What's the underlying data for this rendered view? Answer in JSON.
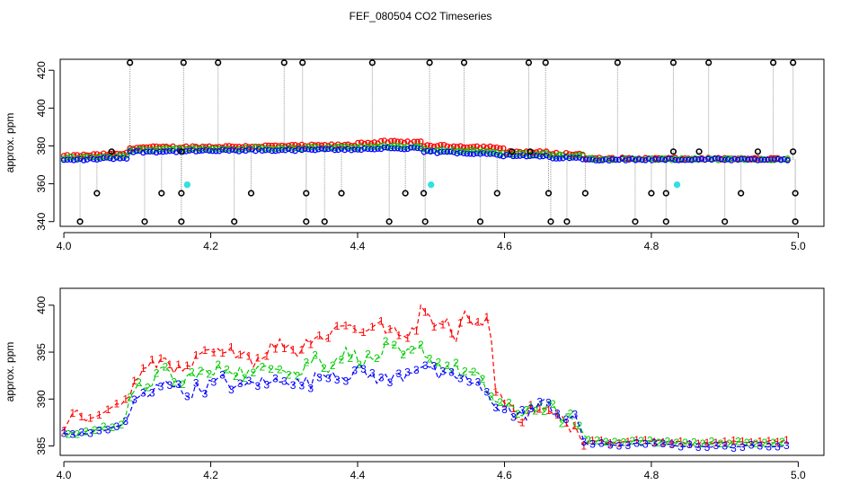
{
  "title": "FEF_080504  CO2 Timeseries",
  "colors": {
    "black": "#000000",
    "red": "#ff0000",
    "green": "#00cc00",
    "blue": "#0000ff",
    "cyan": "#33e0e0",
    "grey": "#9a9a9a"
  },
  "chart_data": [
    {
      "type": "scatter",
      "panel": "top",
      "xlabel": "",
      "ylabel": "approx. ppm",
      "xlim": [
        3.995,
        5.035
      ],
      "ylim": [
        337.5,
        425.8
      ],
      "xticks": [
        4.0,
        4.2,
        4.4,
        4.6,
        4.8,
        5.0
      ],
      "xtick_labels": [
        "4.0",
        "4.2",
        "4.4",
        "4.6",
        "4.8",
        "5.0"
      ],
      "yticks": [
        340,
        360,
        380,
        400,
        420
      ],
      "ytick_labels": [
        "340",
        "360",
        "380",
        "400",
        "420"
      ],
      "baseline_segments": [
        {
          "x0": 4.0,
          "x1": 4.09,
          "y0": 373.0,
          "y1": 374.5
        },
        {
          "x0": 4.09,
          "x1": 4.43,
          "y0": 377.5,
          "y1": 379.0
        },
        {
          "x0": 4.43,
          "x1": 4.49,
          "y0": 379.5,
          "y1": 379.0
        },
        {
          "x0": 4.49,
          "x1": 4.59,
          "y0": 377.5,
          "y1": 376.5
        },
        {
          "x0": 4.59,
          "x1": 4.66,
          "y0": 375.5,
          "y1": 375.0
        },
        {
          "x0": 4.66,
          "x1": 4.71,
          "y0": 374.5,
          "y1": 374.0
        },
        {
          "x0": 4.71,
          "x1": 4.99,
          "y0": 373.0,
          "y1": 372.8
        }
      ],
      "spike_high": {
        "y": 424,
        "x": [
          4.09,
          4.163,
          4.21,
          4.3,
          4.325,
          4.42,
          4.498,
          4.545,
          4.633,
          4.656,
          4.754,
          4.83,
          4.878,
          4.966,
          4.993
        ]
      },
      "spike_low": {
        "y": 340,
        "x": [
          4.022,
          4.11,
          4.16,
          4.232,
          4.33,
          4.355,
          4.443,
          4.492,
          4.567,
          4.663,
          4.685,
          4.778,
          4.82,
          4.9,
          4.996
        ]
      },
      "spike_mid": {
        "y": 355,
        "x": [
          4.045,
          4.133,
          4.16,
          4.255,
          4.33,
          4.378,
          4.465,
          4.49,
          4.59,
          4.66,
          4.71,
          4.8,
          4.82,
          4.922,
          4.996
        ]
      },
      "spike_upper": {
        "y": 377,
        "x": [
          4.065,
          4.16,
          4.61,
          4.635,
          4.83,
          4.865,
          4.945,
          4.993
        ]
      },
      "cyan_points": {
        "x": [
          4.168,
          4.5,
          4.835
        ],
        "y": [
          359.5,
          359.5,
          359.5
        ]
      }
    },
    {
      "type": "line",
      "panel": "bottom",
      "xlabel": "",
      "ylabel": "approx. ppm",
      "xlim": [
        3.995,
        5.035
      ],
      "ylim": [
        384.0,
        401.8
      ],
      "xticks": [
        4.0,
        4.2,
        4.4,
        4.6,
        4.8,
        5.0
      ],
      "xtick_labels": [
        "4.0",
        "4.2",
        "4.4",
        "4.6",
        "4.8",
        "5.0"
      ],
      "yticks": [
        385,
        390,
        395,
        400
      ],
      "ytick_labels": [
        "385",
        "390",
        "395",
        "400"
      ],
      "series": [
        {
          "name": "1",
          "color": "#ff0000",
          "x": [
            4.0,
            4.015,
            4.03,
            4.05,
            4.065,
            4.08,
            4.09,
            4.1,
            4.12,
            4.14,
            4.16,
            4.18,
            4.2,
            4.22,
            4.24,
            4.26,
            4.28,
            4.3,
            4.32,
            4.34,
            4.36,
            4.38,
            4.4,
            4.42,
            4.44,
            4.46,
            4.48,
            4.49,
            4.5,
            4.51,
            4.52,
            4.53,
            4.54,
            4.55,
            4.56,
            4.57,
            4.58,
            4.585,
            4.6,
            4.62,
            4.64,
            4.66,
            4.68,
            4.7,
            4.71,
            4.72,
            4.75,
            4.8,
            4.85,
            4.9,
            4.95,
            4.99
          ],
          "y": [
            386.5,
            389.0,
            387.5,
            388.5,
            389.3,
            389.5,
            390.5,
            392.5,
            393.5,
            394.5,
            392.5,
            394.0,
            395.0,
            394.5,
            395.5,
            394.0,
            395.5,
            396.0,
            395.0,
            397.0,
            396.5,
            398.5,
            397.0,
            398.0,
            397.5,
            396.5,
            398.0,
            400.2,
            399.0,
            397.5,
            399.5,
            396.0,
            398.0,
            399.5,
            397.0,
            398.5,
            399.0,
            392.0,
            389.5,
            388.0,
            389.0,
            388.5,
            387.5,
            387.0,
            385.5,
            385.6,
            385.4,
            385.6,
            385.3,
            385.4,
            385.5,
            385.5
          ]
        },
        {
          "name": "2",
          "color": "#00cc00",
          "x": [
            4.0,
            4.02,
            4.04,
            4.06,
            4.08,
            4.09,
            4.1,
            4.12,
            4.14,
            4.16,
            4.18,
            4.2,
            4.22,
            4.24,
            4.26,
            4.28,
            4.3,
            4.32,
            4.34,
            4.36,
            4.38,
            4.4,
            4.42,
            4.44,
            4.46,
            4.48,
            4.49,
            4.5,
            4.52,
            4.54,
            4.56,
            4.58,
            4.6,
            4.62,
            4.64,
            4.66,
            4.68,
            4.7,
            4.71,
            4.72,
            4.75,
            4.8,
            4.85,
            4.9,
            4.95,
            4.99
          ],
          "y": [
            386.3,
            386.4,
            386.8,
            387.0,
            387.3,
            389.5,
            391.0,
            392.0,
            393.0,
            391.5,
            393.0,
            392.5,
            393.5,
            393.0,
            392.5,
            394.0,
            393.5,
            392.5,
            394.5,
            393.5,
            395.0,
            394.5,
            394.0,
            395.5,
            394.5,
            395.0,
            395.5,
            394.0,
            393.5,
            393.0,
            392.5,
            390.5,
            389.0,
            388.5,
            389.5,
            389.0,
            388.0,
            387.5,
            385.6,
            385.6,
            385.5,
            385.5,
            385.3,
            385.4,
            385.3,
            385.4
          ]
        },
        {
          "name": "3",
          "color": "#0000ff",
          "x": [
            4.0,
            4.02,
            4.04,
            4.06,
            4.08,
            4.09,
            4.1,
            4.12,
            4.14,
            4.16,
            4.18,
            4.2,
            4.22,
            4.24,
            4.26,
            4.28,
            4.3,
            4.32,
            4.34,
            4.36,
            4.38,
            4.4,
            4.42,
            4.44,
            4.46,
            4.48,
            4.49,
            4.5,
            4.52,
            4.54,
            4.56,
            4.58,
            4.6,
            4.62,
            4.64,
            4.66,
            4.68,
            4.7,
            4.71,
            4.72,
            4.75,
            4.8,
            4.85,
            4.9,
            4.95,
            4.99
          ],
          "y": [
            386.3,
            386.2,
            386.5,
            386.8,
            387.2,
            388.5,
            390.0,
            390.5,
            392.5,
            390.5,
            391.0,
            391.5,
            392.0,
            391.0,
            392.0,
            391.5,
            392.5,
            391.5,
            392.0,
            393.0,
            392.5,
            393.0,
            392.5,
            392.0,
            392.5,
            393.5,
            394.0,
            393.0,
            392.0,
            392.5,
            391.5,
            390.0,
            389.0,
            388.0,
            389.0,
            389.5,
            388.0,
            387.5,
            385.2,
            385.2,
            385.1,
            385.2,
            385.0,
            384.9,
            385.0,
            385.1
          ]
        }
      ]
    }
  ]
}
